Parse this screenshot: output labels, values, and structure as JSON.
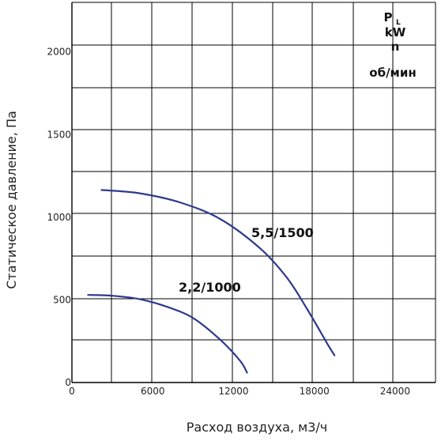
{
  "chart_data": {
    "type": "line",
    "title": "",
    "xlabel": "Расход воздуха, м3/ч",
    "ylabel": "Статическое давление, Па",
    "xlim": [
      0,
      27000
    ],
    "ylim": [
      0,
      2300
    ],
    "x_ticks": [
      "0",
      "6000",
      "12000",
      "18000",
      "24000"
    ],
    "y_ticks": [
      "0",
      "500",
      "1000",
      "1500",
      "2000"
    ],
    "grid": true,
    "legend": {
      "position": "top-right",
      "lines": [
        "P",
        "kW",
        "n",
        "об/мин"
      ],
      "subscript": "L"
    },
    "series": [
      {
        "name": "2,2/1000",
        "color": "#2e3a8c",
        "points": [
          [
            1200,
            530
          ],
          [
            3000,
            525
          ],
          [
            5000,
            505
          ],
          [
            7000,
            460
          ],
          [
            9000,
            390
          ],
          [
            11000,
            260
          ],
          [
            12500,
            130
          ],
          [
            13000,
            60
          ]
        ]
      },
      {
        "name": "5,5/1500",
        "color": "#2e3a8c",
        "points": [
          [
            2200,
            1165
          ],
          [
            5000,
            1145
          ],
          [
            8000,
            1090
          ],
          [
            11000,
            990
          ],
          [
            14000,
            810
          ],
          [
            16000,
            630
          ],
          [
            17500,
            440
          ],
          [
            19000,
            230
          ],
          [
            19500,
            165
          ]
        ]
      }
    ]
  }
}
